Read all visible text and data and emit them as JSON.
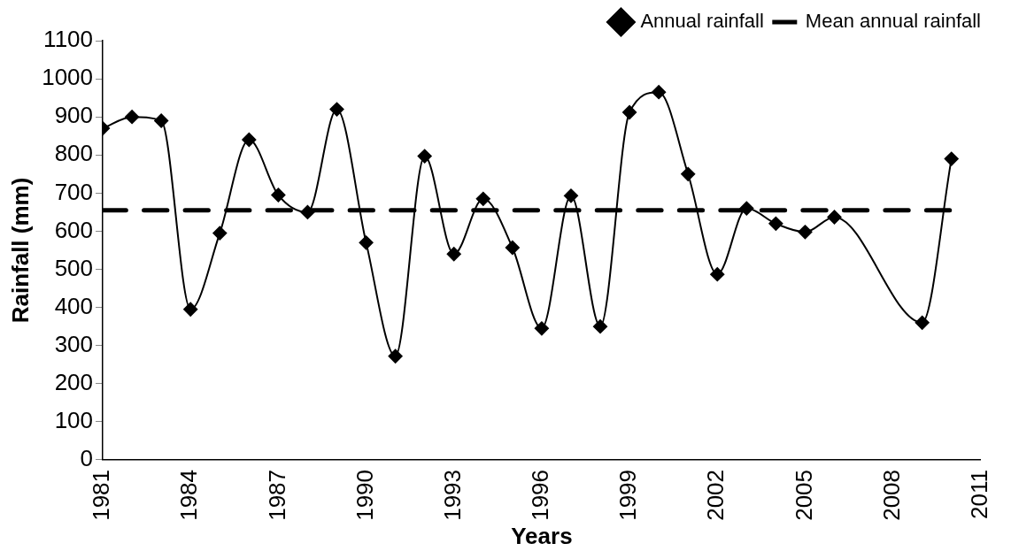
{
  "chart_data": {
    "type": "line",
    "xlabel": "Years",
    "ylabel": "Rainfall (mm)",
    "x": [
      1981,
      1982,
      1983,
      1984,
      1985,
      1986,
      1987,
      1988,
      1989,
      1990,
      1991,
      1992,
      1993,
      1994,
      1995,
      1996,
      1997,
      1998,
      1999,
      2000,
      2001,
      2002,
      2003,
      2004,
      2005,
      2006,
      2009,
      2010
    ],
    "series": [
      {
        "name": "Annual rainfall",
        "color": "#000000",
        "marker": "diamond",
        "line_style": "solid",
        "values": [
          870,
          900,
          890,
          395,
          595,
          840,
          695,
          650,
          920,
          570,
          272,
          797,
          540,
          685,
          557,
          345,
          693,
          350,
          912,
          965,
          750,
          487,
          660,
          620,
          598,
          637,
          360,
          790
        ]
      },
      {
        "name": "Mean annual rainfall",
        "color": "#000000",
        "marker": "none",
        "line_style": "dashed",
        "x": [
          1981,
          2010
        ],
        "values": [
          655,
          655
        ]
      }
    ],
    "xlim": [
      1981,
      2011
    ],
    "xticks": [
      1981,
      1984,
      1987,
      1990,
      1993,
      1996,
      1999,
      2002,
      2005,
      2008,
      2011
    ],
    "ylim": [
      0,
      1100
    ],
    "yticks": [
      0,
      100,
      200,
      300,
      400,
      500,
      600,
      700,
      800,
      900,
      1000,
      1100
    ],
    "grid": false,
    "legend": "top"
  }
}
